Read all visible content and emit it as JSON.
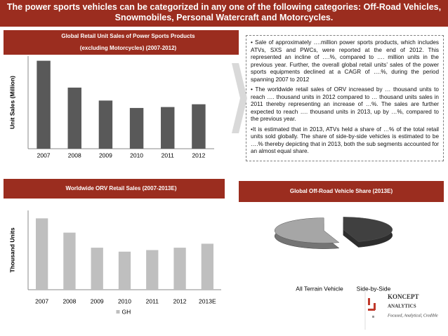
{
  "header": {
    "title": "The power sports vehicles can be categorized in any one of the following categories: Off-Road Vehicles, Snowmobiles, Personal Watercraft and Motorcycles."
  },
  "bullets": [
    "• Sale of approximately ….million power sports products, which includes ATVs, SXS and PWCs, were reported at the end of 2012. This represented an incline of ….%, compared to …. million units in the previous year. Further, the overall global retail units’ sales of the power sports equipments declined at a CAGR of ….%, during the period spanning 2007 to 2012",
    "• The worldwide retail sales of ORV increased by … thousand units to reach …. thousand units in 2012 compared to … thousand units sales in 2011 thereby representing an increase of …%. The sales are further expected to reach …. thousand units in 2013, up by …%, compared to the previous year.",
    "•It is estimated that in 2013, ATVs held a share of …% of the total retail units sold globally. The share of side-by-side vehicles is estimated to be ….% thereby depicting that in 2013, both the sub segments accounted for an almost equal share."
  ],
  "logo": {
    "name": "KONCEPT",
    "sub": "ANALYTICS",
    "tagline": "Focused, Analytical, Credible"
  },
  "chart_data": [
    {
      "type": "bar",
      "title": "Global Retail Unit Sales of Power Sports Products",
      "subtitle": "(excluding Motorcycles) (2007-2012)",
      "ylabel": "Unit Sales (Million)",
      "categories": [
        "2007",
        "2008",
        "2009",
        "2010",
        "2011",
        "2012"
      ],
      "values": [
        95,
        66,
        52,
        44,
        45,
        48
      ],
      "color": "#595959",
      "ylim": [
        0,
        100
      ]
    },
    {
      "type": "bar",
      "title": "Worldwide ORV Retail Sales (2007-2013E)",
      "ylabel": "Thousand Units",
      "categories": [
        "2007",
        "2008",
        "2009",
        "2010",
        "2011",
        "2012",
        "2013E"
      ],
      "series": [
        {
          "name": "GH",
          "color": "#bfbfbf",
          "values": [
            90,
            72,
            53,
            48,
            50,
            53,
            58
          ]
        }
      ],
      "ylim": [
        0,
        100
      ]
    },
    {
      "type": "pie",
      "title": "Global Off-Road Vehicle Share (2013E)",
      "categories": [
        "All Terrain Vehicle",
        "Side-by-Side"
      ],
      "values": [
        55,
        45
      ],
      "colors": [
        "#a6a6a6",
        "#404040"
      ]
    }
  ]
}
